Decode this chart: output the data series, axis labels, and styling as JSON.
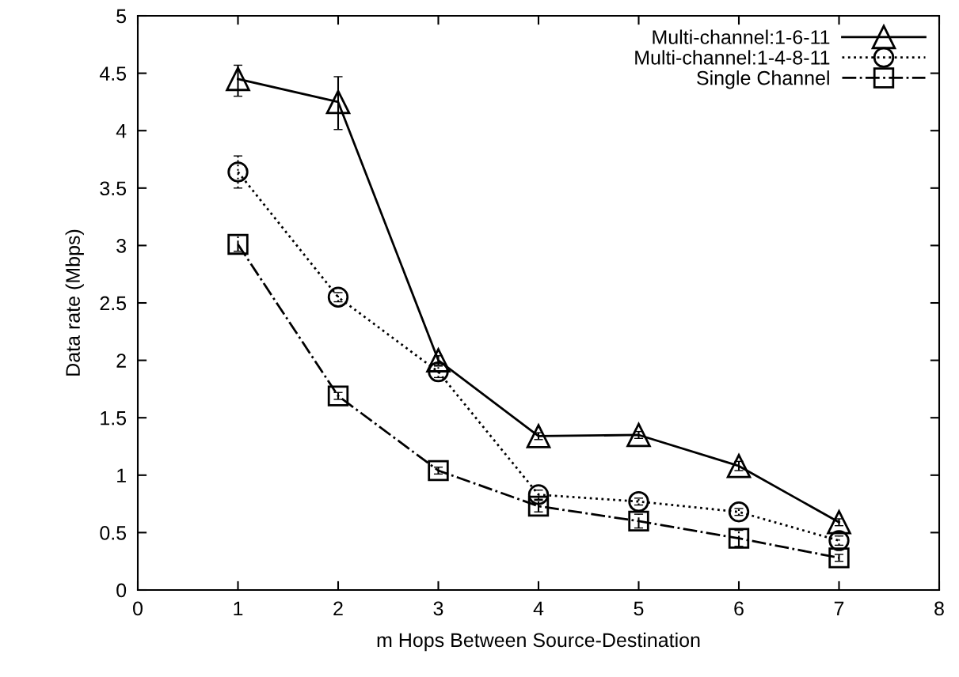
{
  "chart_data": {
    "type": "line",
    "xlabel": "m Hops Between Source-Destination",
    "ylabel": "Data rate (Mbps)",
    "x": [
      1,
      2,
      3,
      4,
      5,
      6,
      7
    ],
    "xlim": [
      0,
      8
    ],
    "xticks": [
      0,
      1,
      2,
      3,
      4,
      5,
      6,
      7,
      8
    ],
    "ylim": [
      0,
      5
    ],
    "yticks": [
      0,
      0.5,
      1,
      1.5,
      2,
      2.5,
      3,
      3.5,
      4,
      4.5,
      5
    ],
    "grid": false,
    "legend": "top right",
    "series": [
      {
        "name": "Multi-channel:1-6-11",
        "color": "#000000",
        "marker": "triangle",
        "line_style": "solid",
        "values": [
          4.45,
          4.25,
          2.0,
          1.34,
          1.35,
          1.08,
          0.59
        ],
        "errors": [
          [
            4.3,
            4.57
          ],
          [
            4.01,
            4.47
          ],
          0.04,
          0.03,
          0.03,
          0.04,
          0.03
        ]
      },
      {
        "name": "Multi-channel:1-4-8-11",
        "color": "#000000",
        "marker": "circle",
        "line_style": "dotted",
        "values": [
          3.64,
          2.55,
          1.9,
          0.83,
          0.77,
          0.68,
          0.43
        ],
        "errors": [
          [
            3.5,
            3.78
          ],
          0.04,
          0.05,
          0.04,
          0.03,
          0.03,
          0.04
        ]
      },
      {
        "name": "Single Channel",
        "color": "#000000",
        "marker": "square",
        "line_style": "dashdot",
        "values": [
          3.01,
          1.69,
          1.04,
          0.73,
          0.6,
          0.45,
          0.28
        ],
        "errors": [
          [
            2.95,
            3.09
          ],
          0.03,
          0.03,
          0.05,
          0.06,
          0.07,
          0.03
        ]
      }
    ]
  }
}
